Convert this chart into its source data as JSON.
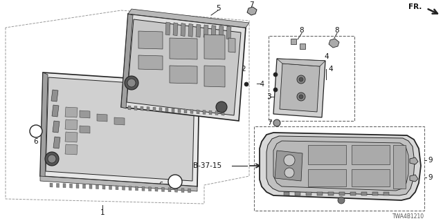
{
  "bg_color": "#ffffff",
  "diagram_code": "TWA4B1210",
  "fr_label": "FR.",
  "b37_label": "B-37-15",
  "line_color": "#222222",
  "text_color": "#111111",
  "dashed_color": "#666666",
  "gray_light": "#d8d8d8",
  "gray_mid": "#b0b0b0",
  "gray_dark": "#888888",
  "gray_darker": "#555555"
}
